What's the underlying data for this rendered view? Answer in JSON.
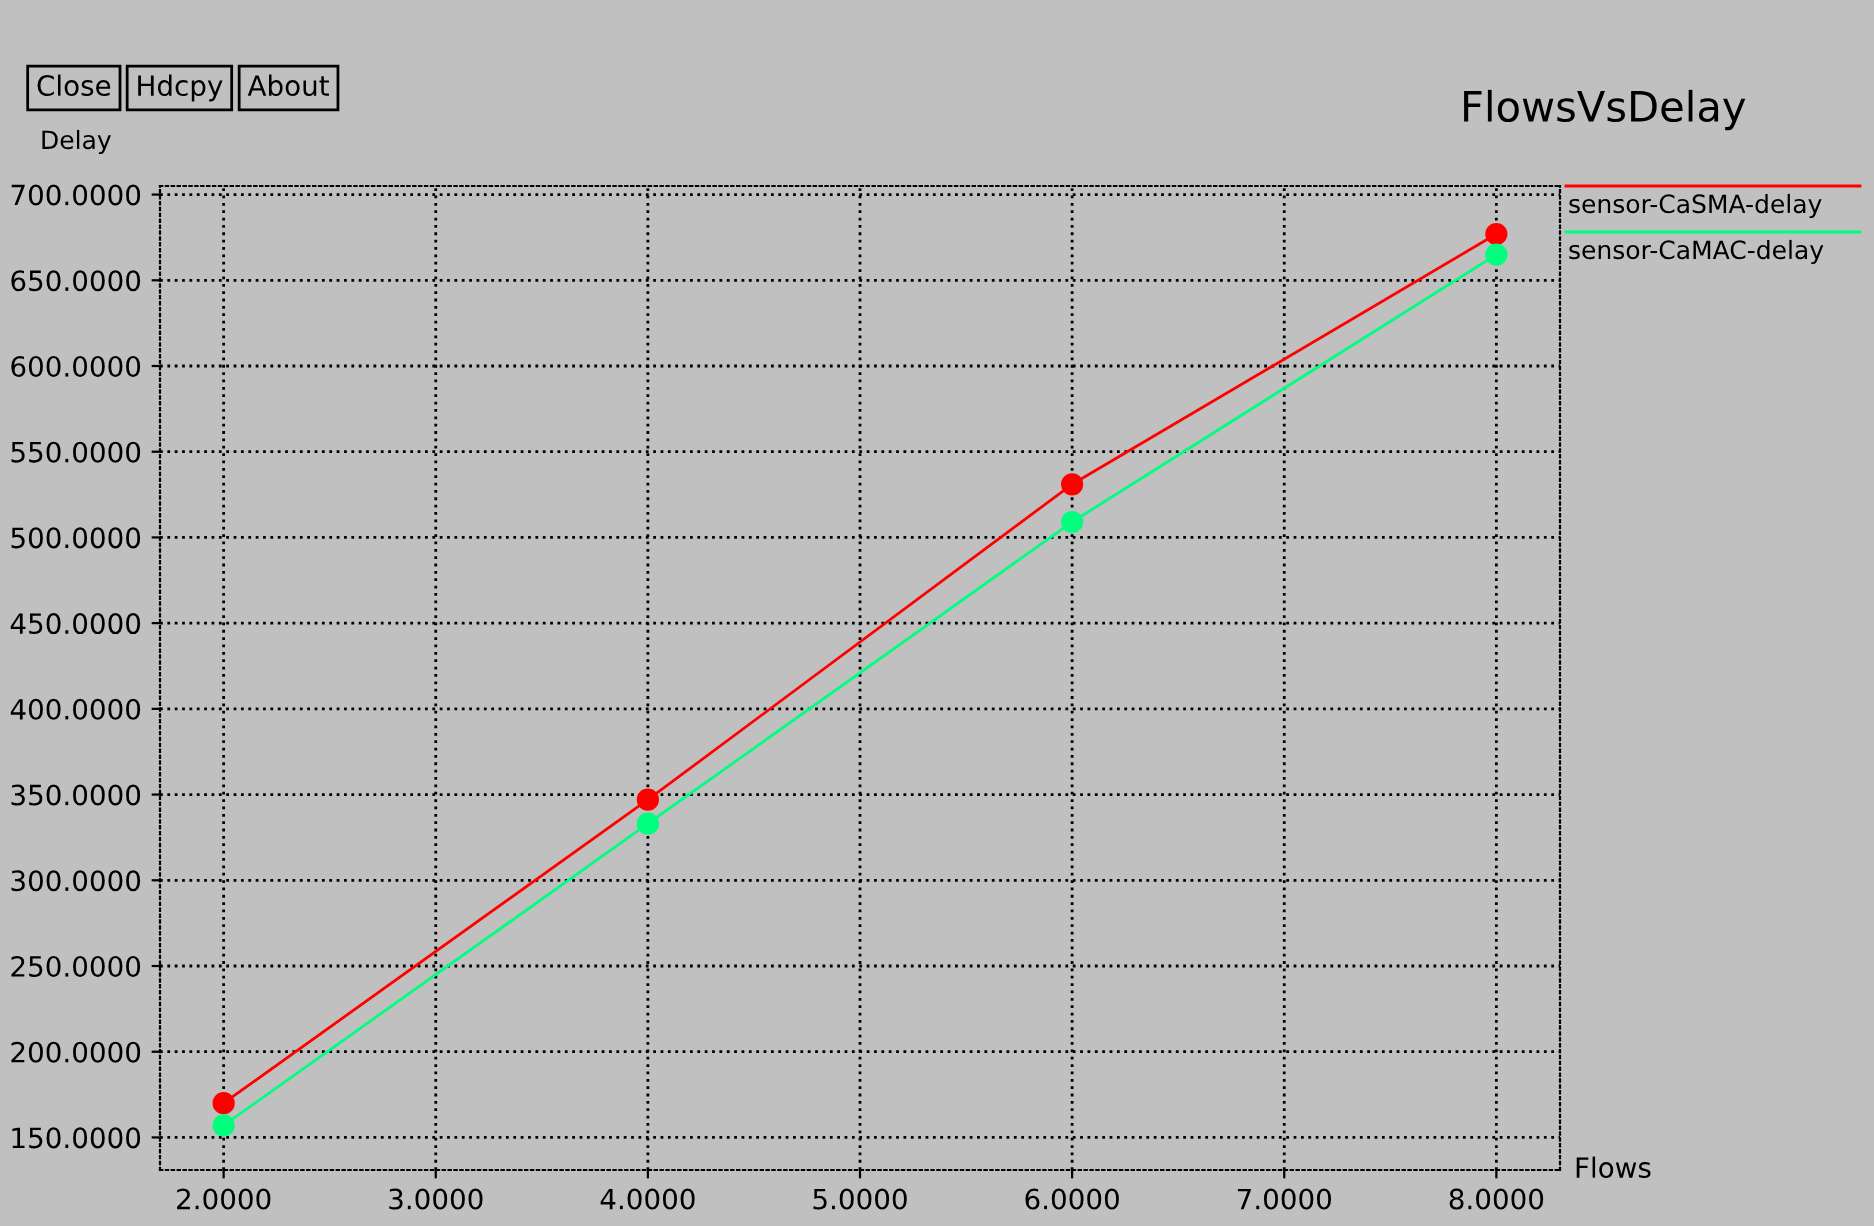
{
  "chart_data": {
    "type": "line",
    "title": "FlowsVsDelay",
    "xlabel": "Flows",
    "ylabel": "Delay",
    "annotations": [
      "Close",
      "Hdcpy",
      "About"
    ],
    "x": [
      2,
      4,
      6,
      8
    ],
    "series": [
      {
        "name": "sensor-CaSMA-delay",
        "color": "#ff0000",
        "values": [
          170,
          347,
          531,
          677
        ]
      },
      {
        "name": "sensor-CaMAC-delay",
        "color": "#00ff7f",
        "values": [
          157,
          333,
          509,
          665
        ]
      }
    ],
    "xlim": [
      1.7,
      8.3
    ],
    "ylim": [
      131,
      705
    ],
    "xticks": [
      {
        "value": 2,
        "label": "2.0000"
      },
      {
        "value": 3,
        "label": "3.0000"
      },
      {
        "value": 4,
        "label": "4.0000"
      },
      {
        "value": 5,
        "label": "5.0000"
      },
      {
        "value": 6,
        "label": "6.0000"
      },
      {
        "value": 7,
        "label": "7.0000"
      },
      {
        "value": 8,
        "label": "8.0000"
      }
    ],
    "yticks": [
      {
        "value": 150,
        "label": "150.0000"
      },
      {
        "value": 200,
        "label": "200.0000"
      },
      {
        "value": 250,
        "label": "250.0000"
      },
      {
        "value": 300,
        "label": "300.0000"
      },
      {
        "value": 350,
        "label": "350.0000"
      },
      {
        "value": 400,
        "label": "400.0000"
      },
      {
        "value": 450,
        "label": "450.0000"
      },
      {
        "value": 500,
        "label": "500.0000"
      },
      {
        "value": 550,
        "label": "550.0000"
      },
      {
        "value": 600,
        "label": "600.0000"
      },
      {
        "value": 650,
        "label": "650.0000"
      },
      {
        "value": 700,
        "label": "700.0000"
      }
    ],
    "grid": true,
    "legend": "top right",
    "marker": "circle",
    "line_style": "solid"
  }
}
